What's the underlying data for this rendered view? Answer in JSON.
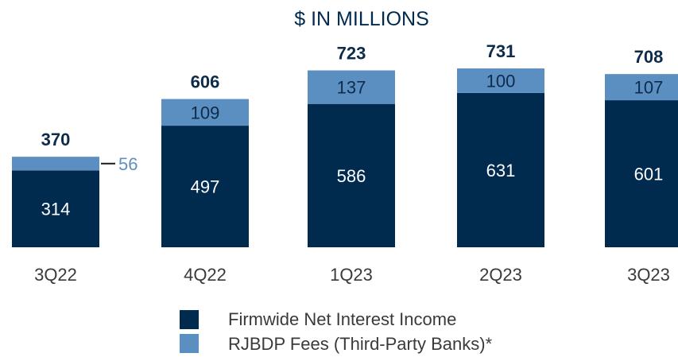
{
  "chart_data": {
    "type": "bar",
    "stacked": true,
    "title": "$ IN MILLIONS",
    "categories": [
      "3Q22",
      "4Q22",
      "1Q23",
      "2Q23",
      "3Q23"
    ],
    "series": [
      {
        "name": "Firmwide Net Interest Income",
        "values": [
          314,
          497,
          586,
          631,
          601
        ],
        "color": "#002a4e"
      },
      {
        "name": "RJBDP Fees (Third-Party Banks)*",
        "values": [
          56,
          109,
          137,
          100,
          107
        ],
        "color": "#5b8fc1"
      }
    ],
    "totals": [
      370,
      606,
      723,
      731,
      708
    ],
    "xlabel": "",
    "ylabel": "",
    "ylim": [
      0,
      731
    ],
    "grid": false,
    "legend_position": "bottom-center"
  }
}
